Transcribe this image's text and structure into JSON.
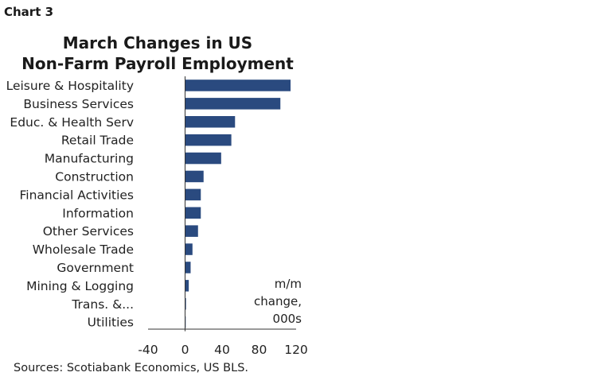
{
  "header": {
    "label": "Chart 3"
  },
  "chart_data": {
    "type": "bar",
    "orientation": "horizontal",
    "title_lines": [
      "March Changes in US",
      "Non-Farm Payroll Employment"
    ],
    "categories": [
      "Leisure & Hospitality",
      "Business Services",
      "Educ. & Health Serv",
      "Retail Trade",
      "Manufacturing",
      "Construction",
      "Financial Activities",
      "Information",
      "Other Services",
      "Wholesale Trade",
      "Government",
      "Mining & Logging",
      "Trans. &...",
      "Utilities"
    ],
    "values": [
      114,
      103,
      54,
      50,
      39,
      20,
      17,
      17,
      14,
      8,
      6,
      4,
      1,
      0
    ],
    "xlim": [
      -40,
      120
    ],
    "xticks": [
      "-40",
      "0",
      "40",
      "80",
      "120"
    ],
    "unit_note": [
      "m/m",
      "change,",
      "000s"
    ],
    "bar_color": "#2a4a7f",
    "grid": false
  },
  "source": "Sources: Scotiabank Economics, US BLS."
}
